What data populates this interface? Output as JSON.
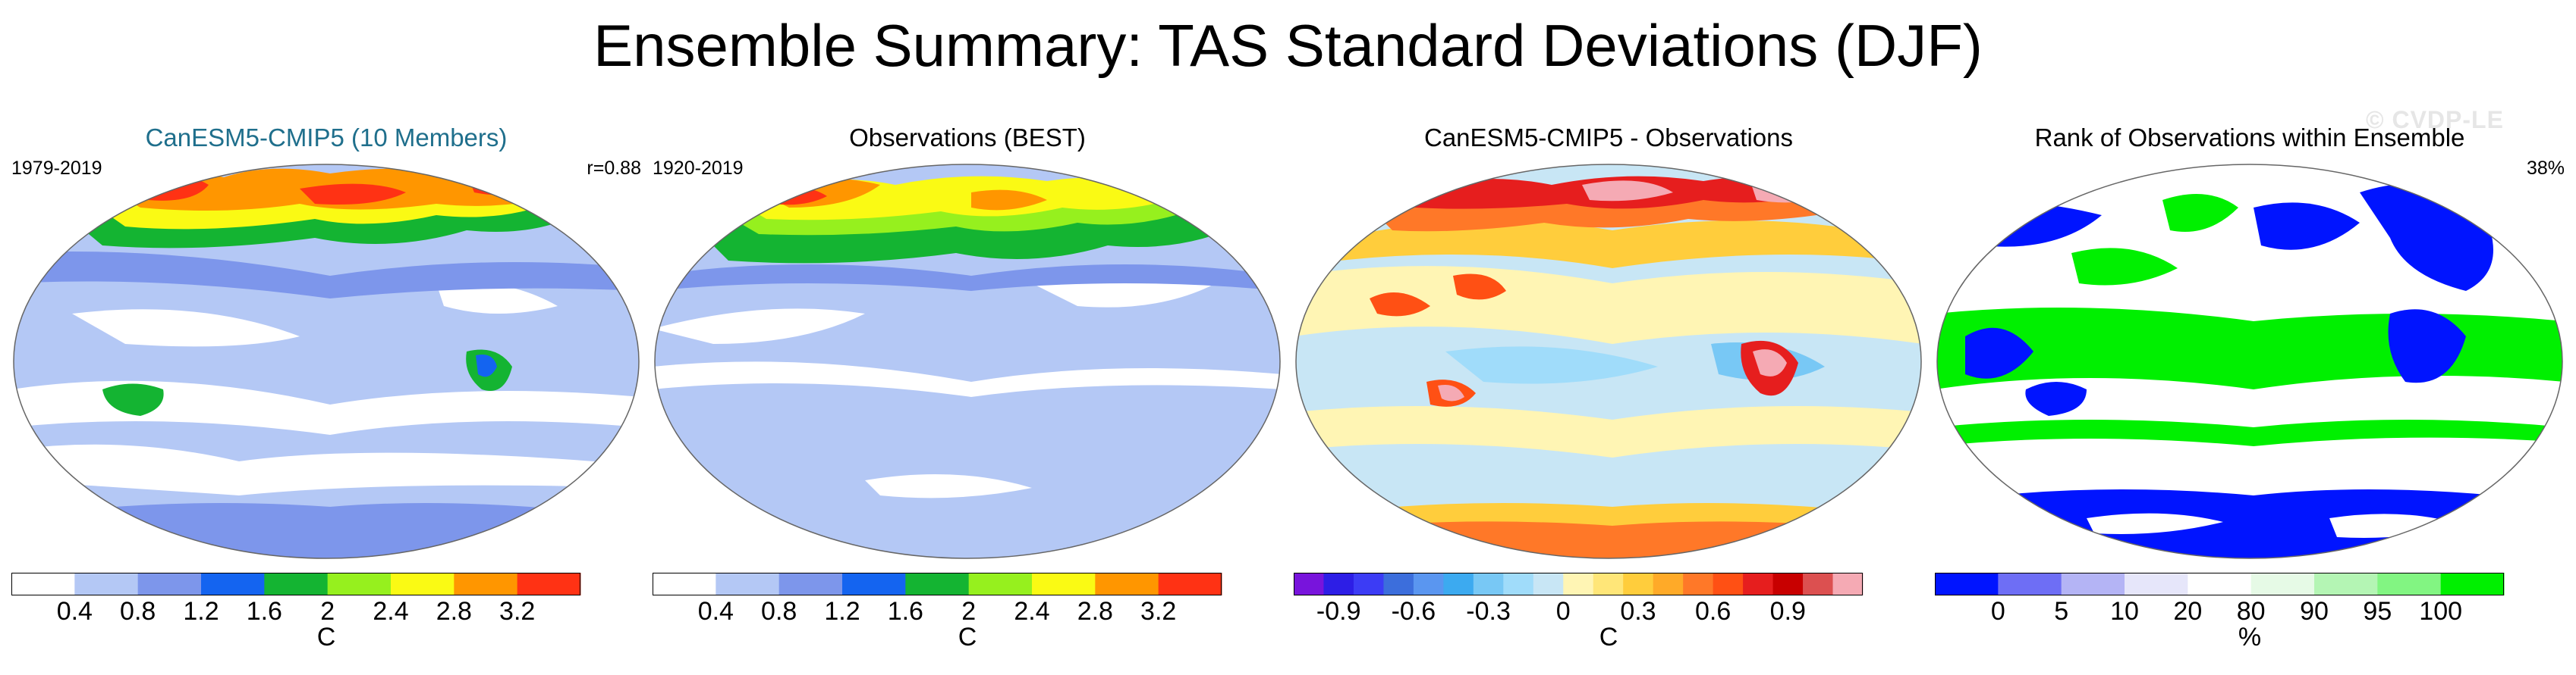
{
  "title": "Ensemble Summary: TAS Standard Deviations (DJF)",
  "watermark": "© CVDP-LE",
  "panels": [
    {
      "title": "CanESM5-CMIP5 (10 Members)",
      "left_label": "1979-2019",
      "right_label": "r=0.88",
      "colorbar": {
        "colors": [
          "#ffffff",
          "#b4c8f5",
          "#7d96eb",
          "#1464f0",
          "#14b432",
          "#96f01e",
          "#fafa14",
          "#ff9600",
          "#ff3214"
        ],
        "tick_labels": [
          "0.4",
          "0.8",
          "1.2",
          "1.6",
          "2",
          "2.4",
          "2.8",
          "3.2"
        ],
        "unit": "C"
      }
    },
    {
      "title": "Observations (BEST)",
      "left_label": "1920-2019",
      "right_label": "",
      "colorbar": {
        "colors": [
          "#ffffff",
          "#b4c8f5",
          "#7d96eb",
          "#1464f0",
          "#14b432",
          "#96f01e",
          "#fafa14",
          "#ff9600",
          "#ff3214"
        ],
        "tick_labels": [
          "0.4",
          "0.8",
          "1.2",
          "1.6",
          "2",
          "2.4",
          "2.8",
          "3.2"
        ],
        "unit": "C"
      }
    },
    {
      "title": "CanESM5-CMIP5 - Observations",
      "left_label": "",
      "right_label": "",
      "colorbar": {
        "colors": [
          "#7814dc",
          "#2d1ee6",
          "#3c3cf5",
          "#3c6edc",
          "#5a96f0",
          "#3caaf0",
          "#78c8f5",
          "#a0dcfa",
          "#c8e6f5",
          "#fff5b4",
          "#ffe678",
          "#ffcd3c",
          "#ffaa28",
          "#ff7828",
          "#ff5014",
          "#e61e1e",
          "#c80000",
          "#dc5050",
          "#f5aab4"
        ],
        "tick_labels": [
          "-0.9",
          "-0.6",
          "-0.3",
          "0",
          "0.3",
          "0.6",
          "0.9"
        ],
        "unit": "C"
      }
    },
    {
      "title": "Rank of Observations within Ensemble",
      "left_label": "",
      "right_label": "38%",
      "colorbar": {
        "colors": [
          "#0014ff",
          "#6e6ef5",
          "#b4b4f5",
          "#e6e6fa",
          "#ffffff",
          "#e6fae6",
          "#b4f5b4",
          "#82f582",
          "#00f000"
        ],
        "tick_labels": [
          "0",
          "5",
          "10",
          "20",
          "80",
          "90",
          "95",
          "100"
        ],
        "unit": "%"
      }
    }
  ]
}
